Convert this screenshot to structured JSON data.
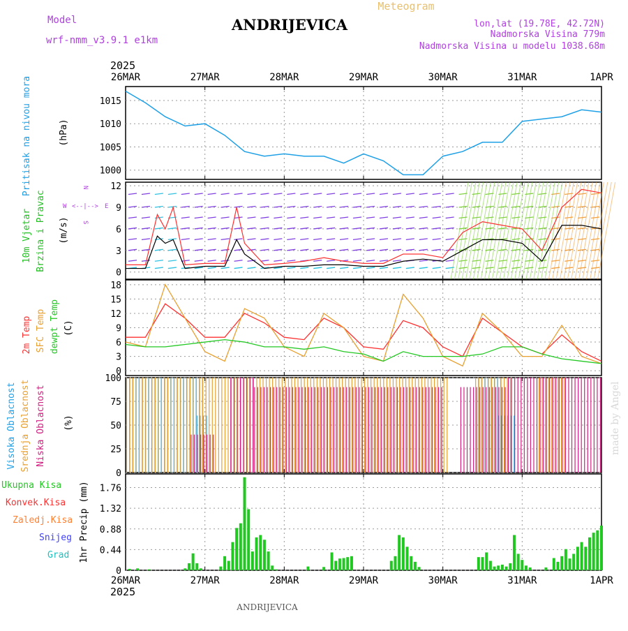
{
  "header": {
    "model_label": "Model",
    "model_name": "wrf-nmm_v3.9.1 e1km",
    "title": "ANDRIJEVICA",
    "meteogram_label": "Meteogram",
    "coords": "lon,lat (19.78E, 42.72N)",
    "elevation": "Nadmorska Visina 779m",
    "model_elevation": "Nadmorska Visina u modelu 1038.68m",
    "year": "2025",
    "footer_title": "ANDRIJEVICA",
    "watermark": "made by Angel"
  },
  "colors": {
    "pressure": "#1ea0e6",
    "wind_label": "#22c022",
    "speed": "#000000",
    "gust": "#ff3030",
    "temp2m": "#ff3030",
    "sfc": "#e8a030",
    "dew": "#22c822",
    "high_cloud": "#1ea0e6",
    "mid_cloud": "#e8a030",
    "low_cloud": "#d02080",
    "rain_total": "#22c822",
    "rain_conv": "#ff3030",
    "rain_frozen": "#ff7f30",
    "snow": "#4040ff",
    "hail": "#20c0c0",
    "purple": "#b040e0"
  },
  "chart_data": [
    {
      "type": "line",
      "panel": "pressure",
      "ylabel": "Pritisak na nivou mora",
      "unit": "(hPa)",
      "x_ticks": [
        "26MAR",
        "27MAR",
        "28MAR",
        "29MAR",
        "30MAR",
        "31MAR",
        "1APR"
      ],
      "ylim": [
        998,
        1018
      ],
      "y_ticks": [
        1000,
        1005,
        1010,
        1015
      ],
      "grid": true,
      "x": [
        0,
        0.25,
        0.5,
        0.75,
        1,
        1.25,
        1.5,
        1.75,
        2,
        2.25,
        2.5,
        2.75,
        3,
        3.25,
        3.5,
        3.75,
        4,
        4.25,
        4.5,
        4.75,
        5,
        5.25,
        5.5,
        5.75,
        6
      ],
      "values": [
        1017,
        1014.5,
        1011.5,
        1009.5,
        1010,
        1007.5,
        1004,
        1003,
        1003.5,
        1003,
        1003,
        1001.5,
        1003.5,
        1002,
        999,
        999,
        1003,
        1004,
        1006,
        1006,
        1010.5,
        1011,
        1011.5,
        1013,
        1012.5
      ]
    },
    {
      "type": "line",
      "panel": "wind",
      "ylabel": "10m Vjetar Brzina i Pravac",
      "unit": "(m/s)",
      "compass": [
        "N",
        "W",
        "E",
        "S"
      ],
      "ylim": [
        -1,
        12.5
      ],
      "y_ticks": [
        0,
        3,
        6,
        9,
        12
      ],
      "grid": true,
      "series": [
        {
          "name": "Brzina",
          "x": [
            0,
            0.25,
            0.4,
            0.5,
            0.6,
            0.75,
            1,
            1.25,
            1.4,
            1.5,
            1.75,
            2,
            2.25,
            2.5,
            2.75,
            3,
            3.25,
            3.5,
            3.75,
            4,
            4.25,
            4.5,
            4.75,
            5,
            5.25,
            5.5,
            5.75,
            6
          ],
          "values": [
            0.5,
            0.5,
            5,
            4,
            4.5,
            0.5,
            0.8,
            0.8,
            4.5,
            2.5,
            0.5,
            0.8,
            0.8,
            1,
            1,
            0.8,
            0.8,
            1.5,
            1.8,
            1.5,
            3,
            4.5,
            4.5,
            4,
            1.5,
            6.5,
            6.5,
            6
          ]
        },
        {
          "name": "Udar",
          "x": [
            0,
            0.25,
            0.4,
            0.5,
            0.6,
            0.75,
            1,
            1.25,
            1.4,
            1.5,
            1.75,
            2,
            2.25,
            2.5,
            2.75,
            3,
            3.25,
            3.5,
            3.75,
            4,
            4.25,
            4.5,
            4.75,
            5,
            5.25,
            5.5,
            5.75,
            6
          ],
          "values": [
            1,
            1,
            8,
            6,
            9,
            1,
            1.2,
            1.2,
            9,
            4,
            1,
            1.2,
            1.5,
            2,
            1.5,
            1.2,
            1.2,
            2.5,
            2.5,
            2,
            5.5,
            7,
            6.5,
            6,
            3,
            9,
            11.5,
            11
          ]
        }
      ]
    },
    {
      "type": "line",
      "panel": "temperature",
      "ylabel": "2m Temp SFC Temp dewpt Temp",
      "unit": "(C)",
      "ylim": [
        -1,
        19
      ],
      "y_ticks": [
        0,
        3,
        6,
        9,
        12,
        15,
        18
      ],
      "grid": true,
      "series": [
        {
          "name": "2m Temp",
          "x": [
            0,
            0.25,
            0.5,
            0.75,
            1,
            1.25,
            1.5,
            1.75,
            2,
            2.25,
            2.5,
            2.75,
            3,
            3.25,
            3.5,
            3.75,
            4,
            4.25,
            4.5,
            4.75,
            5,
            5.25,
            5.5,
            5.75,
            6
          ],
          "values": [
            7,
            7,
            14,
            11,
            7,
            7,
            12,
            10,
            7,
            6.5,
            11,
            9,
            5,
            4.5,
            10.5,
            9,
            5,
            3,
            11,
            8,
            5,
            3.5,
            7.5,
            4,
            2
          ]
        },
        {
          "name": "SFC Temp",
          "x": [
            0,
            0.25,
            0.5,
            0.75,
            1,
            1.25,
            1.5,
            1.75,
            2,
            2.25,
            2.5,
            2.75,
            3,
            3.25,
            3.5,
            3.75,
            4,
            4.25,
            4.5,
            4.75,
            5,
            5.25,
            5.5,
            5.75,
            6
          ],
          "values": [
            6,
            5,
            18,
            11,
            4,
            2,
            13,
            11,
            5,
            3,
            12,
            9,
            3,
            2,
            16,
            11,
            3,
            1,
            12,
            8,
            3,
            3,
            9.5,
            3,
            1.5
          ]
        },
        {
          "name": "dewpt Temp",
          "x": [
            0,
            0.25,
            0.5,
            0.75,
            1,
            1.25,
            1.5,
            1.75,
            2,
            2.25,
            2.5,
            2.75,
            3,
            3.25,
            3.5,
            3.75,
            4,
            4.25,
            4.5,
            4.75,
            5,
            5.25,
            5.5,
            5.75,
            6
          ],
          "values": [
            5.5,
            5,
            5,
            5.5,
            6,
            6.5,
            6,
            5,
            5,
            4.5,
            5,
            4,
            3.5,
            2,
            4,
            3,
            3,
            3,
            3.5,
            5,
            5,
            3.5,
            2.5,
            2,
            1.5
          ]
        }
      ]
    },
    {
      "type": "bar",
      "panel": "clouds",
      "ylabel": "Visoka Oblacnost Srednja Oblacnost Niska Oblacnost",
      "unit": "(%)",
      "ylim": [
        0,
        100
      ],
      "y_ticks": [
        0,
        25,
        50,
        75,
        100
      ],
      "grid": true,
      "series": [
        {
          "name": "Visoka Oblacnost",
          "spans": [
            [
              0.05,
              1.0,
              100
            ],
            [
              0.9,
              1.05,
              60
            ],
            [
              4.45,
              4.75,
              100
            ],
            [
              4.7,
              4.9,
              60
            ]
          ]
        },
        {
          "name": "Srednja Oblacnost",
          "spans": [
            [
              0.0,
              4.05,
              100
            ],
            [
              4.4,
              4.85,
              100
            ],
            [
              5.2,
              5.55,
              100
            ]
          ]
        },
        {
          "name": "Niska Oblacnost",
          "spans": [
            [
              0.8,
              1.1,
              40
            ],
            [
              1.3,
              1.6,
              100
            ],
            [
              1.6,
              4.0,
              90
            ],
            [
              4.2,
              4.8,
              90
            ],
            [
              4.8,
              6.0,
              100
            ]
          ]
        }
      ]
    },
    {
      "type": "bar",
      "panel": "precipitation",
      "ylabel": "1hr Precip (mm)",
      "legend": [
        "Ukupna Kisa",
        "Konvek.Kisa",
        "Zaledj.Kisa",
        "Snijeg",
        "Grad"
      ],
      "ylim": [
        0,
        2.05
      ],
      "y_ticks": [
        0,
        0.44,
        0.88,
        1.32,
        1.76
      ],
      "grid": true,
      "bars": [
        [
          0.05,
          0.03
        ],
        [
          0.15,
          0.04
        ],
        [
          0.3,
          0.02
        ],
        [
          0.75,
          0.04
        ],
        [
          0.8,
          0.15
        ],
        [
          0.85,
          0.36
        ],
        [
          0.9,
          0.15
        ],
        [
          0.95,
          0.04
        ],
        [
          1.2,
          0.08
        ],
        [
          1.25,
          0.3
        ],
        [
          1.3,
          0.2
        ],
        [
          1.35,
          0.6
        ],
        [
          1.4,
          0.9
        ],
        [
          1.45,
          1.0
        ],
        [
          1.5,
          1.98
        ],
        [
          1.55,
          1.3
        ],
        [
          1.6,
          0.4
        ],
        [
          1.65,
          0.7
        ],
        [
          1.7,
          0.75
        ],
        [
          1.75,
          0.65
        ],
        [
          1.8,
          0.4
        ],
        [
          1.85,
          0.1
        ],
        [
          1.9,
          0.02
        ],
        [
          2.3,
          0.08
        ],
        [
          2.5,
          0.07
        ],
        [
          2.6,
          0.38
        ],
        [
          2.65,
          0.2
        ],
        [
          2.7,
          0.25
        ],
        [
          2.75,
          0.26
        ],
        [
          2.8,
          0.28
        ],
        [
          2.85,
          0.3
        ],
        [
          3.35,
          0.2
        ],
        [
          3.4,
          0.3
        ],
        [
          3.45,
          0.75
        ],
        [
          3.5,
          0.7
        ],
        [
          3.55,
          0.5
        ],
        [
          3.6,
          0.3
        ],
        [
          3.65,
          0.18
        ],
        [
          3.7,
          0.07
        ],
        [
          4.45,
          0.28
        ],
        [
          4.5,
          0.28
        ],
        [
          4.55,
          0.38
        ],
        [
          4.6,
          0.2
        ],
        [
          4.65,
          0.08
        ],
        [
          4.7,
          0.1
        ],
        [
          4.75,
          0.12
        ],
        [
          4.8,
          0.08
        ],
        [
          4.85,
          0.15
        ],
        [
          4.9,
          0.75
        ],
        [
          4.95,
          0.35
        ],
        [
          5.0,
          0.22
        ],
        [
          5.05,
          0.1
        ],
        [
          5.1,
          0.06
        ],
        [
          5.3,
          0.06
        ],
        [
          5.4,
          0.26
        ],
        [
          5.45,
          0.18
        ],
        [
          5.5,
          0.3
        ],
        [
          5.55,
          0.45
        ],
        [
          5.6,
          0.25
        ],
        [
          5.65,
          0.35
        ],
        [
          5.7,
          0.5
        ],
        [
          5.75,
          0.6
        ],
        [
          5.8,
          0.5
        ],
        [
          5.85,
          0.7
        ],
        [
          5.9,
          0.8
        ],
        [
          5.95,
          0.85
        ],
        [
          6.0,
          0.95
        ]
      ]
    }
  ]
}
